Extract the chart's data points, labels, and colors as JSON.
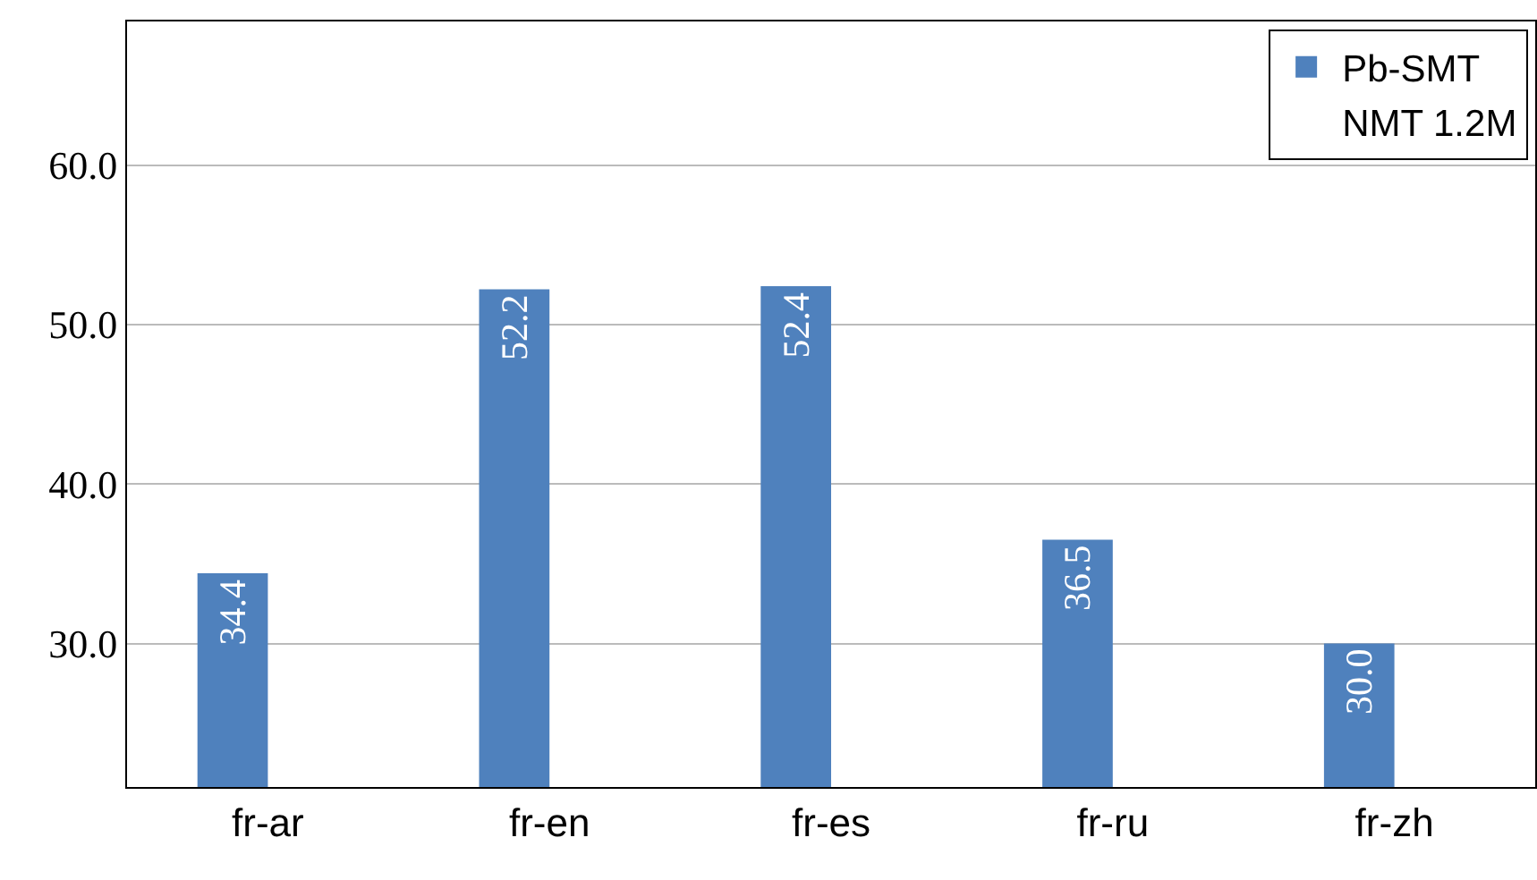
{
  "chart_data": {
    "type": "bar",
    "categories": [
      "fr-ar",
      "fr-en",
      "fr-es",
      "fr-ru",
      "fr-zh"
    ],
    "series": [
      {
        "name": "Pb-SMT",
        "color": "#4f81bd",
        "values": [
          34.4,
          52.2,
          52.4,
          36.5,
          30.0
        ],
        "value_labels": [
          "34.4",
          "52.2",
          "52.4",
          "36.5",
          "30.0"
        ]
      },
      {
        "name": "NMT 1.2M",
        "values": [
          null,
          null,
          null,
          null,
          null
        ]
      }
    ],
    "ylim": [
      21,
      69
    ],
    "yticks": [
      {
        "value": 30,
        "label": "30.0"
      },
      {
        "value": 40,
        "label": "40.0"
      },
      {
        "value": 50,
        "label": "50.0"
      },
      {
        "value": 60,
        "label": "60.0"
      }
    ],
    "grid": "y",
    "legend": "top right"
  }
}
